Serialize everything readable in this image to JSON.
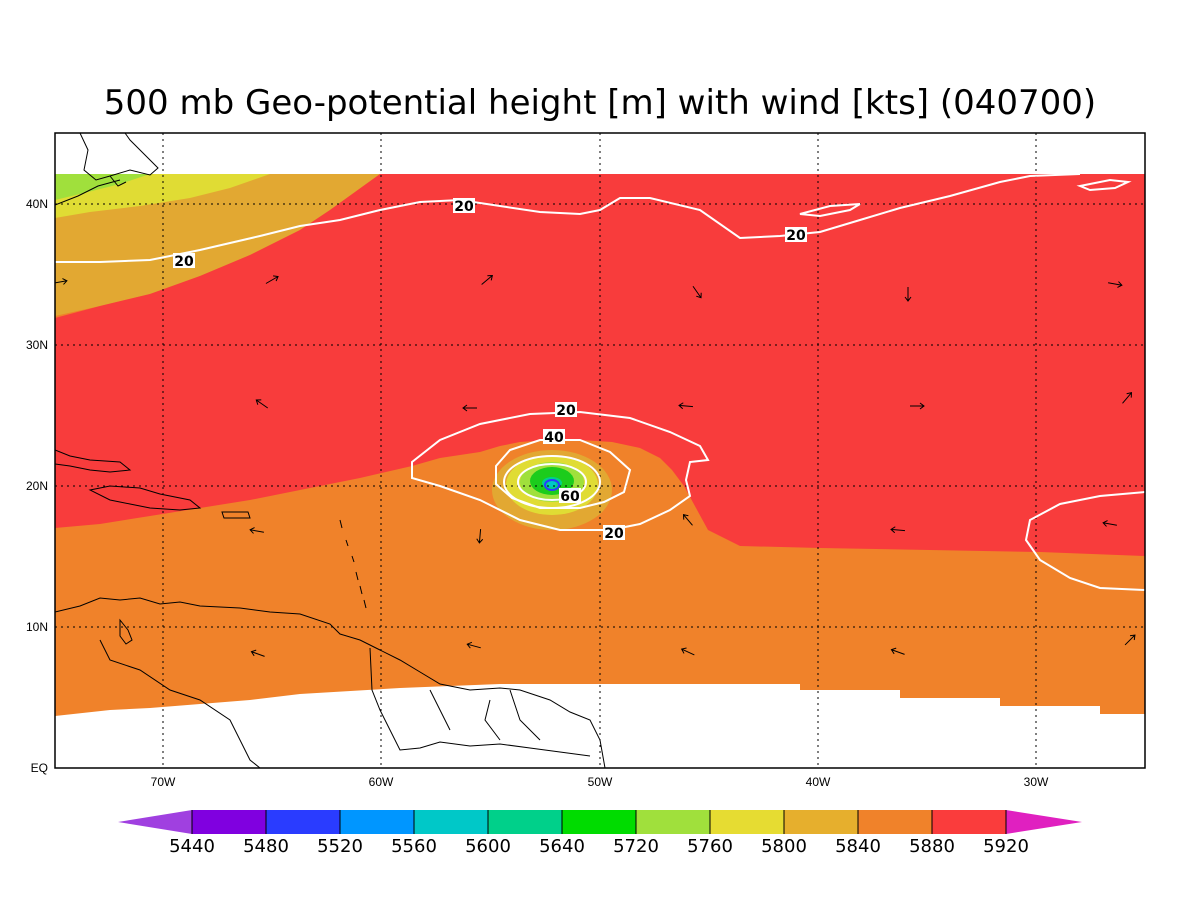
{
  "title": "500 mb Geo-potential height [m] with wind [kts] (040700)",
  "map": {
    "lon_range": [
      -75,
      -25
    ],
    "lat_range": [
      0,
      45
    ],
    "lon_ticks": [
      "70W",
      "60W",
      "50W",
      "40W",
      "30W"
    ],
    "lat_ticks": [
      "EQ",
      "10N",
      "20N",
      "30N",
      "40N"
    ],
    "grid_style": "dotted",
    "colors": {
      "c5920": "#f83c3c",
      "c5880": "#f0822a",
      "c5840": "#e2a832",
      "c5800": "#e0dc34",
      "c5760": "#a0e03c",
      "c5720": "#1ccc1c",
      "c5640": "#00d08a",
      "c5600": "#00c8c8",
      "coast": "#000000",
      "wind_contour": "#ffffff"
    },
    "wind_contour_labels": [
      "20",
      "20",
      "20",
      "20",
      "40",
      "60",
      "20"
    ]
  },
  "colorbar": {
    "labels": [
      "5440",
      "5480",
      "5520",
      "5560",
      "5600",
      "5640",
      "5720",
      "5760",
      "5800",
      "5840",
      "5880",
      "5920"
    ],
    "colors": [
      "#a040e0",
      "#8000e0",
      "#2a3cff",
      "#0096ff",
      "#00c8c8",
      "#00d08a",
      "#00dc00",
      "#a0e03c",
      "#e6dc32",
      "#e6af2d",
      "#f0822a",
      "#fa3c3c",
      "#f01496",
      "#e020c0"
    ]
  }
}
